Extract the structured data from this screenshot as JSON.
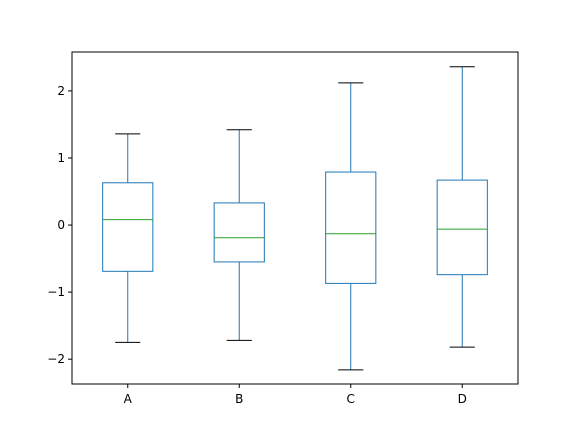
{
  "chart_data": {
    "type": "box",
    "title": "",
    "xlabel": "",
    "ylabel": "",
    "categories": [
      "A",
      "B",
      "C",
      "D"
    ],
    "boxes": [
      {
        "name": "A",
        "whisker_low": -1.75,
        "q1": -0.69,
        "median": 0.08,
        "q3": 0.63,
        "whisker_high": 1.36
      },
      {
        "name": "B",
        "whisker_low": -1.72,
        "q1": -0.55,
        "median": -0.19,
        "q3": 0.33,
        "whisker_high": 1.42
      },
      {
        "name": "C",
        "whisker_low": -2.16,
        "q1": -0.87,
        "median": -0.13,
        "q3": 0.79,
        "whisker_high": 2.12
      },
      {
        "name": "D",
        "whisker_low": -1.82,
        "q1": -0.74,
        "median": -0.06,
        "q3": 0.67,
        "whisker_high": 2.36
      }
    ],
    "ylim": [
      -2.37,
      2.58
    ],
    "yticks": [
      -2,
      -1,
      0,
      1,
      2
    ],
    "ytick_labels": [
      "−2",
      "−1",
      "0",
      "1",
      "2"
    ],
    "grid": false,
    "colors": {
      "box": "#1f77b4",
      "median": "#2ca02c",
      "cap": "#000000"
    }
  }
}
